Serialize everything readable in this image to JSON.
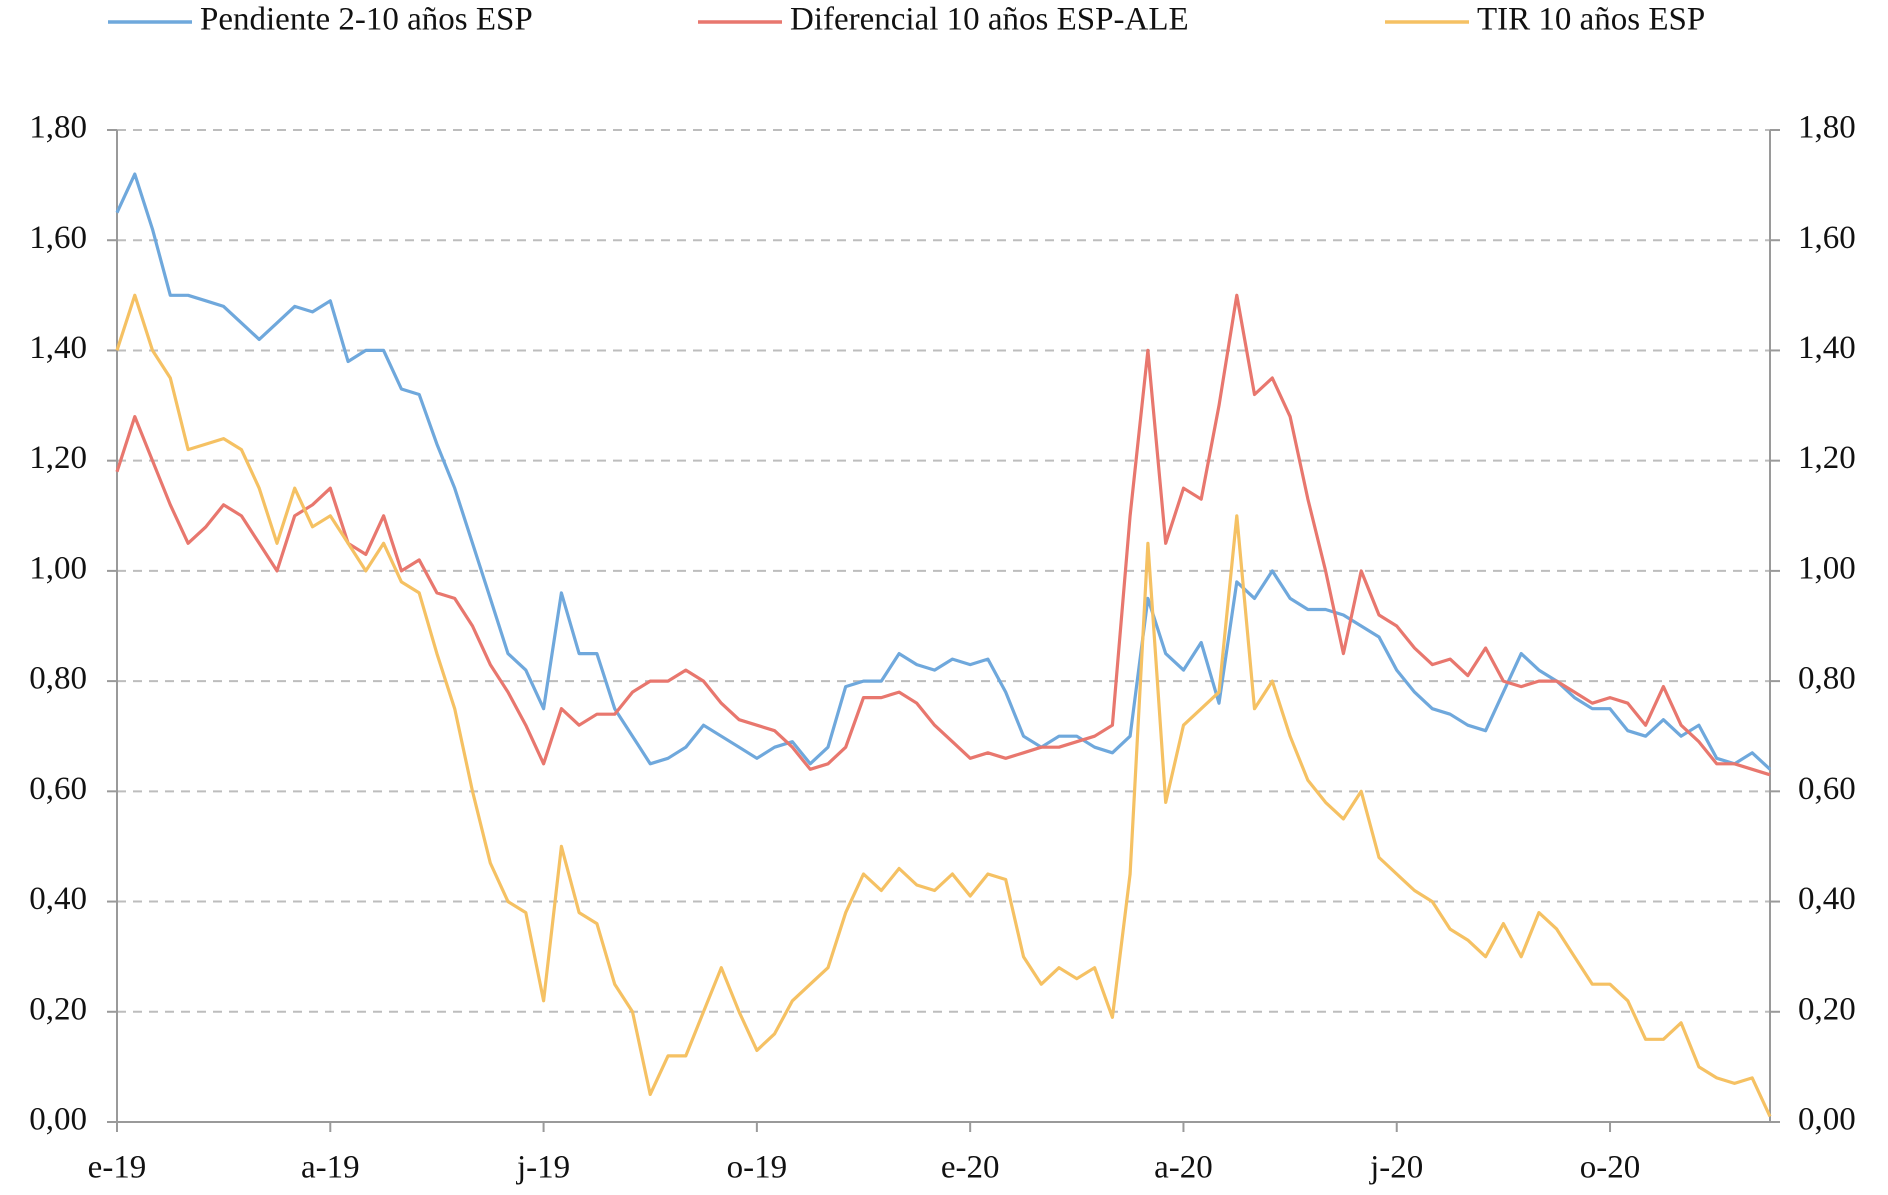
{
  "chart_data": {
    "type": "line",
    "categories": [
      "e-19",
      null,
      null,
      null,
      null,
      null,
      null,
      null,
      null,
      null,
      null,
      null,
      "a-19",
      null,
      null,
      null,
      null,
      null,
      null,
      null,
      null,
      null,
      null,
      null,
      "j-19",
      null,
      null,
      null,
      null,
      null,
      null,
      null,
      null,
      null,
      null,
      null,
      "o-19",
      null,
      null,
      null,
      null,
      null,
      null,
      null,
      null,
      null,
      null,
      null,
      "e-20",
      null,
      null,
      null,
      null,
      null,
      null,
      null,
      null,
      null,
      null,
      null,
      "a-20",
      null,
      null,
      null,
      null,
      null,
      null,
      null,
      null,
      null,
      null,
      null,
      "j-20",
      null,
      null,
      null,
      null,
      null,
      null,
      null,
      null,
      null,
      null,
      null,
      "o-20",
      null,
      null,
      null,
      null,
      null,
      null,
      null,
      null,
      null
    ],
    "series": [
      {
        "name": "Pendiente 2-10 años ESP",
        "color": "#6fa8dc",
        "values": [
          1.65,
          1.72,
          1.62,
          1.5,
          1.5,
          1.49,
          1.48,
          1.45,
          1.42,
          1.45,
          1.48,
          1.47,
          1.49,
          1.38,
          1.4,
          1.4,
          1.33,
          1.32,
          1.23,
          1.15,
          1.05,
          0.95,
          0.85,
          0.82,
          0.75,
          0.96,
          0.85,
          0.85,
          0.75,
          0.7,
          0.65,
          0.66,
          0.68,
          0.72,
          0.7,
          0.68,
          0.66,
          0.68,
          0.69,
          0.65,
          0.68,
          0.79,
          0.8,
          0.8,
          0.85,
          0.83,
          0.82,
          0.84,
          0.83,
          0.84,
          0.78,
          0.7,
          0.68,
          0.7,
          0.7,
          0.68,
          0.67,
          0.7,
          0.95,
          0.85,
          0.82,
          0.87,
          0.76,
          0.98,
          0.95,
          1.0,
          0.95,
          0.93,
          0.93,
          0.92,
          0.9,
          0.88,
          0.82,
          0.78,
          0.75,
          0.74,
          0.72,
          0.71,
          0.78,
          0.85,
          0.82,
          0.8,
          0.77,
          0.75,
          0.75,
          0.71,
          0.7,
          0.73,
          0.7,
          0.72,
          0.66,
          0.65,
          0.67,
          0.64
        ]
      },
      {
        "name": "Diferencial 10 años ESP-ALE",
        "color": "#e8776e",
        "values": [
          1.18,
          1.28,
          1.2,
          1.12,
          1.05,
          1.08,
          1.12,
          1.1,
          1.05,
          1.0,
          1.1,
          1.12,
          1.15,
          1.05,
          1.03,
          1.1,
          1.0,
          1.02,
          0.96,
          0.95,
          0.9,
          0.83,
          0.78,
          0.72,
          0.65,
          0.75,
          0.72,
          0.74,
          0.74,
          0.78,
          0.8,
          0.8,
          0.82,
          0.8,
          0.76,
          0.73,
          0.72,
          0.71,
          0.68,
          0.64,
          0.65,
          0.68,
          0.77,
          0.77,
          0.78,
          0.76,
          0.72,
          0.69,
          0.66,
          0.67,
          0.66,
          0.67,
          0.68,
          0.68,
          0.69,
          0.7,
          0.72,
          1.1,
          1.4,
          1.05,
          1.15,
          1.13,
          1.3,
          1.5,
          1.32,
          1.35,
          1.28,
          1.13,
          1.0,
          0.85,
          1.0,
          0.92,
          0.9,
          0.86,
          0.83,
          0.84,
          0.81,
          0.86,
          0.8,
          0.79,
          0.8,
          0.8,
          0.78,
          0.76,
          0.77,
          0.76,
          0.72,
          0.79,
          0.72,
          0.69,
          0.65,
          0.65,
          0.64,
          0.63
        ]
      },
      {
        "name": "TIR 10 años ESP",
        "color": "#f5c163",
        "values": [
          1.4,
          1.5,
          1.4,
          1.35,
          1.22,
          1.23,
          1.24,
          1.22,
          1.15,
          1.05,
          1.15,
          1.08,
          1.1,
          1.05,
          1.0,
          1.05,
          0.98,
          0.96,
          0.85,
          0.75,
          0.6,
          0.47,
          0.4,
          0.38,
          0.22,
          0.5,
          0.38,
          0.36,
          0.25,
          0.2,
          0.05,
          0.12,
          0.12,
          0.2,
          0.28,
          0.2,
          0.13,
          0.16,
          0.22,
          0.25,
          0.28,
          0.38,
          0.45,
          0.42,
          0.46,
          0.43,
          0.42,
          0.45,
          0.41,
          0.45,
          0.44,
          0.3,
          0.25,
          0.28,
          0.26,
          0.28,
          0.19,
          0.45,
          1.05,
          0.58,
          0.72,
          0.75,
          0.78,
          1.1,
          0.75,
          0.8,
          0.7,
          0.62,
          0.58,
          0.55,
          0.6,
          0.48,
          0.45,
          0.42,
          0.4,
          0.35,
          0.33,
          0.3,
          0.36,
          0.3,
          0.38,
          0.35,
          0.3,
          0.25,
          0.25,
          0.22,
          0.15,
          0.15,
          0.18,
          0.1,
          0.08,
          0.07,
          0.08,
          0.01
        ]
      }
    ],
    "ylim": [
      0,
      1.8
    ],
    "yticks": [
      {
        "value": 0,
        "label": "0,00"
      },
      {
        "value": 0.2,
        "label": "0,20"
      },
      {
        "value": 0.4,
        "label": "0,40"
      },
      {
        "value": 0.6,
        "label": "0,60"
      },
      {
        "value": 0.8,
        "label": "0,80"
      },
      {
        "value": 1.0,
        "label": "1,00"
      },
      {
        "value": 1.2,
        "label": "1,20"
      },
      {
        "value": 1.4,
        "label": "1,40"
      },
      {
        "value": 1.6,
        "label": "1,60"
      },
      {
        "value": 1.8,
        "label": "1,80"
      }
    ],
    "y2lim": [
      0,
      1.8
    ],
    "y2ticks": [
      {
        "value": 0,
        "label": "0,00"
      },
      {
        "value": 0.2,
        "label": "0,20"
      },
      {
        "value": 0.4,
        "label": "0,40"
      },
      {
        "value": 0.6,
        "label": "0,60"
      },
      {
        "value": 0.8,
        "label": "0,80"
      },
      {
        "value": 1.0,
        "label": "1,00"
      },
      {
        "value": 1.2,
        "label": "1,20"
      },
      {
        "value": 1.4,
        "label": "1,40"
      },
      {
        "value": 1.6,
        "label": "1,60"
      },
      {
        "value": 1.8,
        "label": "1,80"
      }
    ],
    "grid": true,
    "legend": "top"
  }
}
